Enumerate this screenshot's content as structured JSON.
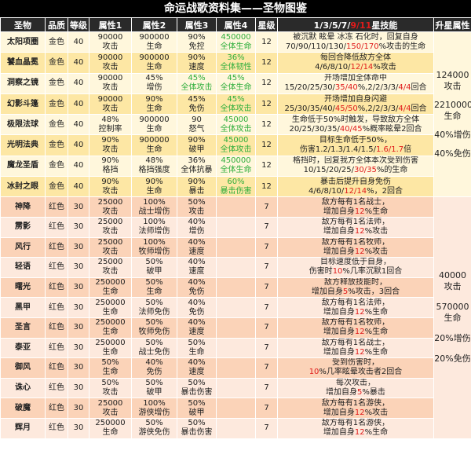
{
  "title": "命运战歌资料集——圣物图鉴",
  "headers": [
    "圣物",
    "品质",
    "等级",
    "属性1",
    "属性2",
    "属性3",
    "属性4",
    "星级",
    "",
    "升星属性"
  ],
  "skill_header": [
    {
      "t": "1/3/5/7/",
      "hl": false
    },
    {
      "t": "9/11",
      "hl": true
    },
    {
      "t": "星技能",
      "hl": false
    }
  ],
  "colors": {
    "highlight": "#e01b1b",
    "green": "#2fae3c",
    "header_bg": "#2a2a2a"
  },
  "gold_upgrade": [
    "124000",
    "攻击",
    "2210000",
    "生命",
    "40%增伤",
    "40%免伤"
  ],
  "red_upgrade": [
    "40000",
    "攻击",
    "570000",
    "生命",
    "20%增伤",
    "20%免伤"
  ],
  "gold": [
    {
      "name": "太阳项圈",
      "q": "金色",
      "lv": "40",
      "a1": [
        "90000",
        "攻击"
      ],
      "a2": [
        "900000",
        "生命"
      ],
      "a3": [
        "90%",
        "免控"
      ],
      "a4": [
        "450000",
        "全体生命"
      ],
      "star": "12",
      "s1": [
        {
          "t": "被沉默 眩晕 冰冻 石化时，回复自身",
          "hl": false
        }
      ],
      "s2": [
        {
          "t": "70/90/110/130/",
          "hl": false
        },
        {
          "t": "150/170",
          "hl": true
        },
        {
          "t": "%攻击的生命",
          "hl": false
        }
      ]
    },
    {
      "name": "饕血晶冕",
      "q": "金色",
      "lv": "40",
      "a1": [
        "90000",
        "攻击"
      ],
      "a2": [
        "900000",
        "生命"
      ],
      "a3": [
        "90%",
        "速度"
      ],
      "a4": [
        "36%",
        "全体韧性"
      ],
      "star": "12",
      "s1": [
        {
          "t": "每回合降低敌方全体",
          "hl": false
        }
      ],
      "s2": [
        {
          "t": "4/6/8/10/",
          "hl": false
        },
        {
          "t": "12/14",
          "hl": true
        },
        {
          "t": "%攻击",
          "hl": false
        }
      ]
    },
    {
      "name": "洞察之镜",
      "q": "金色",
      "lv": "40",
      "a1": [
        "90000",
        "攻击"
      ],
      "a2": [
        "45%",
        "增伤"
      ],
      "a3": [
        "45%",
        "全体攻击"
      ],
      "a3g": true,
      "a4": [
        "45%",
        "全体生命"
      ],
      "star": "12",
      "s1": [
        {
          "t": "开场增加全体命中",
          "hl": false
        }
      ],
      "s2": [
        {
          "t": "15/20/25/30/",
          "hl": false
        },
        {
          "t": "35/40",
          "hl": true
        },
        {
          "t": "%,2/2/3/3/",
          "hl": false
        },
        {
          "t": "4/4",
          "hl": true
        },
        {
          "t": "回合",
          "hl": false
        }
      ]
    },
    {
      "name": "幻影斗篷",
      "q": "金色",
      "lv": "40",
      "a1": [
        "90000",
        "攻击"
      ],
      "a2": [
        "90%",
        "生命"
      ],
      "a3": [
        "45%",
        "免伤"
      ],
      "a4": [
        "45%",
        "全体攻击"
      ],
      "star": "12",
      "s1": [
        {
          "t": "开场增加自身闪避",
          "hl": false
        }
      ],
      "s2": [
        {
          "t": "25/30/35/40/",
          "hl": false
        },
        {
          "t": "45/50",
          "hl": true
        },
        {
          "t": "%,2/2/3/3/",
          "hl": false
        },
        {
          "t": "4/4",
          "hl": true
        },
        {
          "t": "回合",
          "hl": false
        }
      ]
    },
    {
      "name": "极限法球",
      "q": "金色",
      "lv": "40",
      "a1": [
        "48%",
        "控制率"
      ],
      "a2": [
        "900000",
        "生命"
      ],
      "a3": [
        "90",
        "怒气"
      ],
      "a4": [
        "45000",
        "全体攻击"
      ],
      "star": "12",
      "s1": [
        {
          "t": "生命低于50%时触发，导致敌方全体",
          "hl": false
        }
      ],
      "s2": [
        {
          "t": "20/25/30/35/",
          "hl": false
        },
        {
          "t": "40/45",
          "hl": true
        },
        {
          "t": "%概率眩晕2回合",
          "hl": false
        }
      ]
    },
    {
      "name": "光明法典",
      "q": "金色",
      "lv": "40",
      "a1": [
        "90%",
        "攻击"
      ],
      "a2": [
        "900000",
        "生命"
      ],
      "a3": [
        "90%",
        "破甲"
      ],
      "a4": [
        "45000",
        "全体攻击"
      ],
      "star": "12",
      "s1": [
        {
          "t": "目标生命低于50%，",
          "hl": false
        }
      ],
      "s2": [
        {
          "t": "伤害1.2/1.3/1.4/1.5/",
          "hl": false
        },
        {
          "t": "1.6/1.7",
          "hl": true
        },
        {
          "t": "倍",
          "hl": false
        }
      ]
    },
    {
      "name": "魔龙圣盾",
      "q": "金色",
      "lv": "40",
      "a1": [
        "90%",
        "格挡"
      ],
      "a2": [
        "48%",
        "格挡强度"
      ],
      "a3": [
        "36%",
        "全体抗暴"
      ],
      "a4": [
        "450000",
        "全体生命"
      ],
      "star": "12",
      "s1": [
        {
          "t": "格挡时，回复我方全体本次受到伤害",
          "hl": false
        }
      ],
      "s2": [
        {
          "t": "10/15/20/25/",
          "hl": false
        },
        {
          "t": "30/35",
          "hl": true
        },
        {
          "t": "%的生命",
          "hl": false
        }
      ]
    },
    {
      "name": "冰封之眼",
      "q": "金色",
      "lv": "40",
      "a1": [
        "90%",
        "攻击"
      ],
      "a2": [
        "90%",
        "生命"
      ],
      "a3": [
        "90%",
        "暴击"
      ],
      "a4": [
        "60%",
        "暴击伤害"
      ],
      "star": "12",
      "s1": [
        {
          "t": "暴击后提升自身免伤",
          "hl": false
        }
      ],
      "s2": [
        {
          "t": "4/6/8/10/",
          "hl": false
        },
        {
          "t": "12/14",
          "hl": true
        },
        {
          "t": "%，2回合",
          "hl": false
        }
      ]
    }
  ],
  "red": [
    {
      "name": "神降",
      "q": "红色",
      "lv": "30",
      "a1": [
        "25000",
        "攻击"
      ],
      "a2": [
        "100%",
        "战士增伤"
      ],
      "a3": [
        "50%",
        "攻击"
      ],
      "star": "7",
      "s1": [
        {
          "t": "敌方每有1名战士，",
          "hl": false
        }
      ],
      "s2": [
        {
          "t": "增加自身",
          "hl": false
        },
        {
          "t": "12",
          "hl": true
        },
        {
          "t": "%生命",
          "hl": false
        }
      ]
    },
    {
      "name": "雳影",
      "q": "红色",
      "lv": "30",
      "a1": [
        "25000",
        "攻击"
      ],
      "a2": [
        "100%",
        "法师增伤"
      ],
      "a3": [
        "40%",
        "增伤"
      ],
      "star": "7",
      "s1": [
        {
          "t": "敌方每有1名法师，",
          "hl": false
        }
      ],
      "s2": [
        {
          "t": "增加自身",
          "hl": false
        },
        {
          "t": "12",
          "hl": true
        },
        {
          "t": "%攻击",
          "hl": false
        }
      ]
    },
    {
      "name": "风行",
      "q": "红色",
      "lv": "30",
      "a1": [
        "25000",
        "攻击"
      ],
      "a2": [
        "100%",
        "牧师增伤"
      ],
      "a3": [
        "40%",
        "速度"
      ],
      "star": "7",
      "s1": [
        {
          "t": "敌方每有1名牧师，",
          "hl": false
        }
      ],
      "s2": [
        {
          "t": "增加自身",
          "hl": false
        },
        {
          "t": "12",
          "hl": true
        },
        {
          "t": "%攻击",
          "hl": false
        }
      ]
    },
    {
      "name": "轻语",
      "q": "红色",
      "lv": "30",
      "a1": [
        "25000",
        "攻击"
      ],
      "a2": [
        "50%",
        "破甲"
      ],
      "a3": [
        "40%",
        "速度"
      ],
      "star": "7",
      "s1": [
        {
          "t": "目标速度低于自身，",
          "hl": false
        }
      ],
      "s2": [
        {
          "t": "伤害时",
          "hl": false
        },
        {
          "t": "10",
          "hl": true
        },
        {
          "t": "%几率沉默1回合",
          "hl": false
        }
      ]
    },
    {
      "name": "曙光",
      "q": "红色",
      "lv": "30",
      "a1": [
        "250000",
        "生命"
      ],
      "a2": [
        "50%",
        "生命"
      ],
      "a3": [
        "40%",
        "免伤"
      ],
      "star": "7",
      "s1": [
        {
          "t": "敌方释放技能时，",
          "hl": false
        }
      ],
      "s2": [
        {
          "t": "增加自身",
          "hl": false
        },
        {
          "t": "5",
          "hl": true
        },
        {
          "t": "%攻击，3回合",
          "hl": false
        }
      ]
    },
    {
      "name": "黑甲",
      "q": "红色",
      "lv": "30",
      "a1": [
        "250000",
        "生命"
      ],
      "a2": [
        "50%",
        "法师免伤"
      ],
      "a3": [
        "40%",
        "免伤"
      ],
      "star": "7",
      "s1": [
        {
          "t": "敌方每有1名法师，",
          "hl": false
        }
      ],
      "s2": [
        {
          "t": "增加自身",
          "hl": false
        },
        {
          "t": "12",
          "hl": true
        },
        {
          "t": "%生命",
          "hl": false
        }
      ]
    },
    {
      "name": "圣言",
      "q": "红色",
      "lv": "30",
      "a1": [
        "250000",
        "生命"
      ],
      "a2": [
        "50%",
        "牧师免伤"
      ],
      "a3": [
        "40%",
        "速度"
      ],
      "star": "7",
      "s1": [
        {
          "t": "敌方每有1名牧师，",
          "hl": false
        }
      ],
      "s2": [
        {
          "t": "增加自身",
          "hl": false
        },
        {
          "t": "12",
          "hl": true
        },
        {
          "t": "%生命",
          "hl": false
        }
      ]
    },
    {
      "name": "泰亚",
      "q": "红色",
      "lv": "30",
      "a1": [
        "250000",
        "生命"
      ],
      "a2": [
        "50%",
        "战士免伤"
      ],
      "a3": [
        "50%",
        "生命"
      ],
      "star": "7",
      "s1": [
        {
          "t": "敌方每有1名战士，",
          "hl": false
        }
      ],
      "s2": [
        {
          "t": "增加自身",
          "hl": false
        },
        {
          "t": "12",
          "hl": true
        },
        {
          "t": "%生命",
          "hl": false
        }
      ]
    },
    {
      "name": "御风",
      "q": "红色",
      "lv": "30",
      "a1": [
        "50%",
        "生命"
      ],
      "a2": [
        "40%",
        "免伤"
      ],
      "a3": [
        "40%",
        "速度"
      ],
      "star": "7",
      "s1": [
        {
          "t": "受到伤害时，",
          "hl": false
        }
      ],
      "s2": [
        {
          "t": "10",
          "hl": true
        },
        {
          "t": "%几率眩晕攻击者2回合",
          "hl": false
        }
      ]
    },
    {
      "name": "诛心",
      "q": "红色",
      "lv": "30",
      "a1": [
        "50%",
        "攻击"
      ],
      "a2": [
        "50%",
        "破甲"
      ],
      "a3": [
        "50%",
        "暴击伤害"
      ],
      "star": "7",
      "s1": [
        {
          "t": "每次攻击，",
          "hl": false
        }
      ],
      "s2": [
        {
          "t": "增加自身",
          "hl": false
        },
        {
          "t": "5",
          "hl": true
        },
        {
          "t": "%暴击",
          "hl": false
        }
      ]
    },
    {
      "name": "破魔",
      "q": "红色",
      "lv": "30",
      "a1": [
        "25000",
        "攻击"
      ],
      "a2": [
        "100%",
        "游侠增伤"
      ],
      "a3": [
        "50%",
        "破甲"
      ],
      "star": "7",
      "s1": [
        {
          "t": "敌方每有1名游侠，",
          "hl": false
        }
      ],
      "s2": [
        {
          "t": "增加自身",
          "hl": false
        },
        {
          "t": "12",
          "hl": true
        },
        {
          "t": "%攻击",
          "hl": false
        }
      ]
    },
    {
      "name": "辉月",
      "q": "红色",
      "lv": "30",
      "a1": [
        "250000",
        "生命"
      ],
      "a2": [
        "50%",
        "游侠免伤"
      ],
      "a3": [
        "50%",
        "暴击伤害"
      ],
      "star": "7",
      "s1": [
        {
          "t": "敌方每有1名游侠，",
          "hl": false
        }
      ],
      "s2": [
        {
          "t": "增加自身",
          "hl": false
        },
        {
          "t": "12",
          "hl": true
        },
        {
          "t": "%生命",
          "hl": false
        }
      ]
    }
  ]
}
